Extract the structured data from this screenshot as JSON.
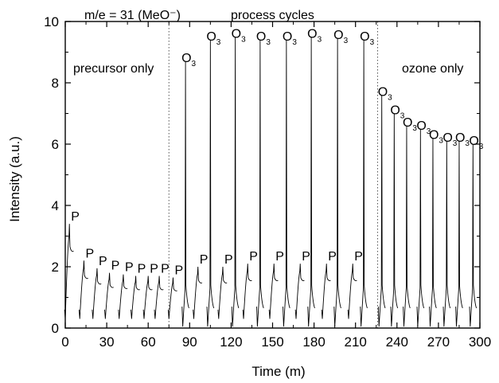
{
  "chart_data": {
    "type": "line",
    "xlabel": "Time (m)",
    "ylabel": "Intensity (a.u.)",
    "xlim": [
      0,
      300
    ],
    "ylim": [
      0,
      10
    ],
    "x_ticks": [
      0,
      30,
      60,
      90,
      120,
      150,
      180,
      210,
      240,
      270,
      300
    ],
    "y_ticks": [
      0,
      2,
      4,
      6,
      8,
      10
    ],
    "grid": false,
    "annotations": {
      "mass_label": "m/e = 31 (MeO⁻)",
      "region_precursor": "precursor only",
      "region_process": "process cycles",
      "region_ozone": "ozone only"
    },
    "dividers_x": [
      75,
      226
    ],
    "precursor_pulses": [
      {
        "t": 3,
        "peak": 3.4,
        "label": "P"
      },
      {
        "t": 13.5,
        "peak": 2.2,
        "label": "P"
      },
      {
        "t": 23,
        "peak": 1.95,
        "label": "P"
      },
      {
        "t": 32,
        "peak": 1.8,
        "label": "P"
      },
      {
        "t": 42,
        "peak": 1.75,
        "label": "P"
      },
      {
        "t": 51,
        "peak": 1.7,
        "label": "P"
      },
      {
        "t": 60,
        "peak": 1.7,
        "label": "P"
      },
      {
        "t": 68,
        "peak": 1.7,
        "label": "P"
      },
      {
        "t": 78,
        "peak": 1.65,
        "label": "P"
      },
      {
        "t": 96,
        "peak": 2.0,
        "label": "P"
      },
      {
        "t": 114,
        "peak": 2.0,
        "label": "P"
      },
      {
        "t": 132,
        "peak": 2.1,
        "label": "P"
      },
      {
        "t": 151,
        "peak": 2.1,
        "label": "P"
      },
      {
        "t": 170,
        "peak": 2.1,
        "label": "P"
      },
      {
        "t": 189,
        "peak": 2.1,
        "label": "P"
      },
      {
        "t": 208,
        "peak": 2.1,
        "label": "P"
      }
    ],
    "ozone_pulses": [
      {
        "t": 87,
        "peak": 8.7,
        "label": "O",
        "subscript": "3"
      },
      {
        "t": 105,
        "peak": 9.4,
        "label": "O",
        "subscript": "3"
      },
      {
        "t": 123,
        "peak": 9.5,
        "label": "O",
        "subscript": "3"
      },
      {
        "t": 141,
        "peak": 9.4,
        "label": "O",
        "subscript": "3"
      },
      {
        "t": 160,
        "peak": 9.4,
        "label": "O",
        "subscript": "3"
      },
      {
        "t": 178,
        "peak": 9.5,
        "label": "O",
        "subscript": "3"
      },
      {
        "t": 197,
        "peak": 9.45,
        "label": "O",
        "subscript": "3"
      },
      {
        "t": 216,
        "peak": 9.4,
        "label": "O",
        "subscript": "3"
      },
      {
        "t": 229,
        "peak": 7.6,
        "label": "O",
        "subscript": "3"
      },
      {
        "t": 238,
        "peak": 7.0,
        "label": "O",
        "subscript": "3"
      },
      {
        "t": 247,
        "peak": 6.6,
        "label": "O",
        "subscript": "3"
      },
      {
        "t": 257,
        "peak": 6.5,
        "label": "O",
        "subscript": "3"
      },
      {
        "t": 266,
        "peak": 6.2,
        "label": "O",
        "subscript": "3"
      },
      {
        "t": 276,
        "peak": 6.1,
        "label": "O",
        "subscript": "3"
      },
      {
        "t": 285,
        "peak": 6.1,
        "label": "O",
        "subscript": "3"
      },
      {
        "t": 295,
        "peak": 6.0,
        "label": "O",
        "subscript": "3"
      }
    ],
    "precursor_label_indices": [
      0,
      1,
      2,
      3,
      4,
      5,
      6,
      7,
      8,
      9,
      10,
      11,
      12,
      13,
      14,
      15
    ],
    "ozone_label_indices": [
      0,
      1,
      2,
      3,
      4,
      5,
      6,
      7,
      8,
      9,
      10,
      11,
      12,
      13,
      14,
      15
    ]
  }
}
